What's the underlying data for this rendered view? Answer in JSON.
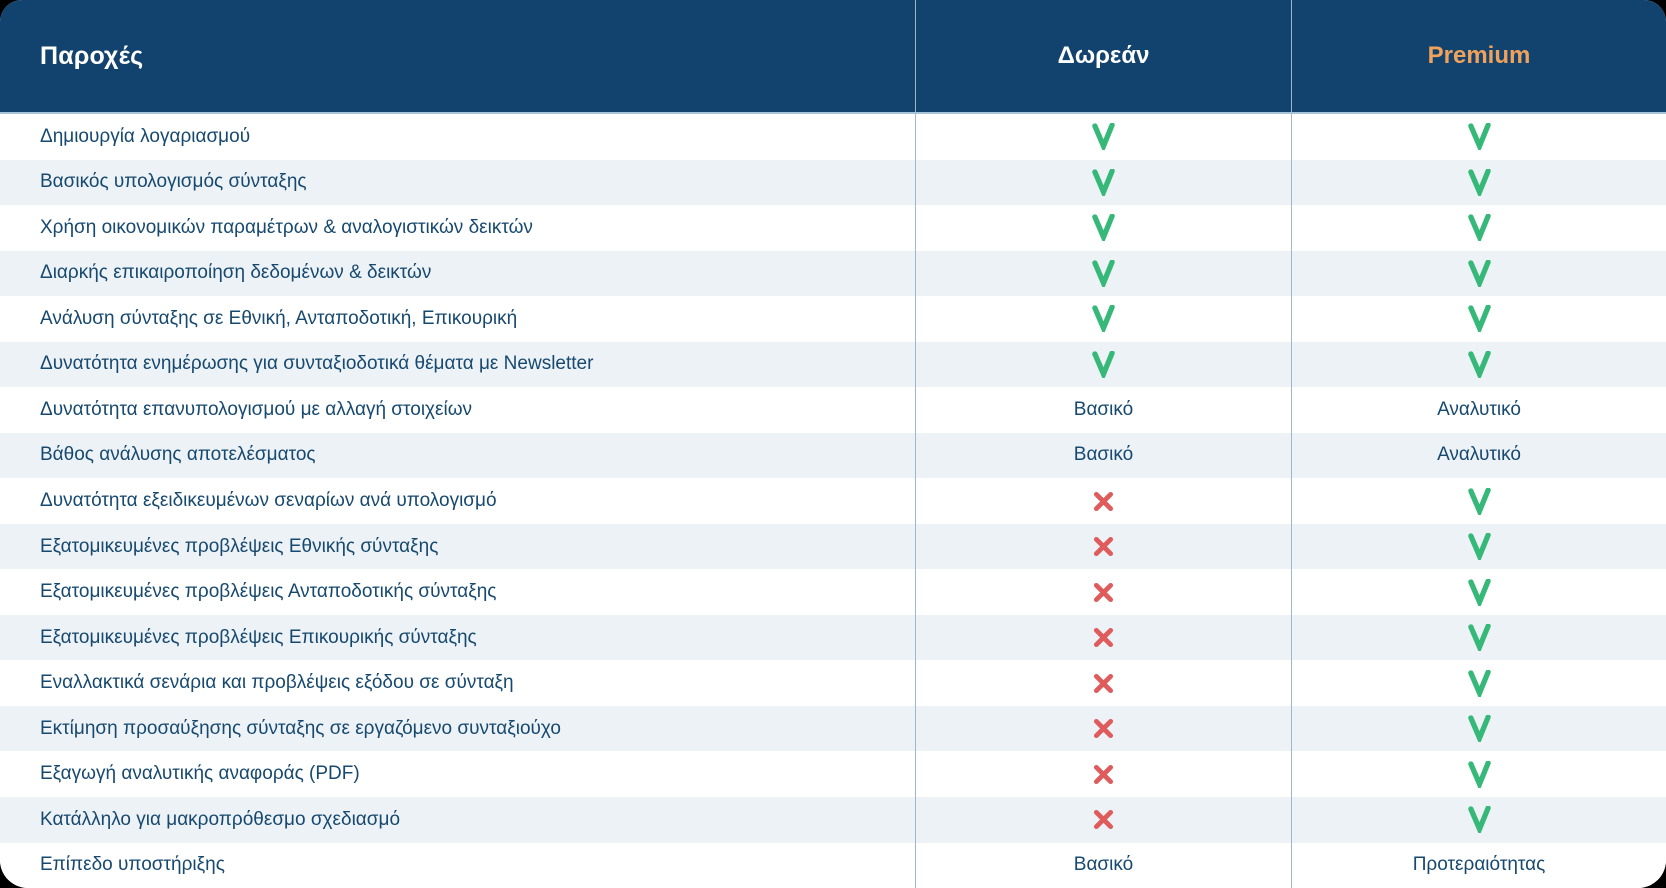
{
  "table": {
    "header": {
      "feature_label": "Παροχές",
      "free_label": "Δωρεάν",
      "premium_label": "Premium"
    },
    "rows": [
      {
        "feature": "Δημιουργία λογαριασμού",
        "free": "check",
        "premium": "check"
      },
      {
        "feature": "Βασικός υπολογισμός σύνταξης",
        "free": "check",
        "premium": "check"
      },
      {
        "feature": "Χρήση οικονομικών παραμέτρων & αναλογιστικών δεικτών",
        "free": "check",
        "premium": "check"
      },
      {
        "feature": "Διαρκής επικαιροποίηση δεδομένων & δεικτών",
        "free": "check",
        "premium": "check"
      },
      {
        "feature": "Ανάλυση σύνταξης σε Εθνική, Ανταποδοτική, Επικουρική",
        "free": "check",
        "premium": "check"
      },
      {
        "feature": "Δυνατότητα ενημέρωσης για συνταξιοδοτικά θέματα με Newsletter",
        "free": "check",
        "premium": "check"
      },
      {
        "feature": "Δυνατότητα επανυπολογισμού με αλλαγή στοιχείων",
        "free": "Βασικό",
        "premium": "Αναλυτικό"
      },
      {
        "feature": "Βάθος ανάλυσης αποτελέσματος",
        "free": "Βασικό",
        "premium": "Αναλυτικό"
      },
      {
        "feature": "Δυνατότητα εξειδικευμένων σεναρίων ανά υπολογισμό",
        "free": "cross",
        "premium": "check"
      },
      {
        "feature": "Εξατομικευμένες προβλέψεις Εθνικής σύνταξης",
        "free": "cross",
        "premium": "check"
      },
      {
        "feature": "Εξατομικευμένες προβλέψεις Ανταποδοτικής σύνταξης",
        "free": "cross",
        "premium": "check"
      },
      {
        "feature": "Εξατομικευμένες προβλέψεις Επικουρικής σύνταξης",
        "free": "cross",
        "premium": "check"
      },
      {
        "feature": "Εναλλακτικά σενάρια και προβλέψεις εξόδου σε σύνταξη",
        "free": "cross",
        "premium": "check"
      },
      {
        "feature": "Εκτίμηση προσαύξησης σύνταξης σε εργαζόμενο συνταξιούχο",
        "free": "cross",
        "premium": "check"
      },
      {
        "feature": "Εξαγωγή αναλυτικής αναφοράς (PDF)",
        "free": "cross",
        "premium": "check"
      },
      {
        "feature": "Κατάλληλο για μακροπρόθεσμο σχεδιασμό",
        "free": "cross",
        "premium": "check"
      },
      {
        "feature": "Επίπεδο υποστήριξης",
        "free": "Βασικό",
        "premium": "Προτεραιότητας"
      }
    ]
  },
  "icons": {
    "check": "check-icon",
    "cross": "cross-icon"
  },
  "colors": {
    "header_background": "#12436f",
    "premium_accent": "#f0a25c",
    "check_green": "#35b878",
    "cross_red": "#e05c5c",
    "row_alt_background": "#edf2f6",
    "text_navy": "#17496f",
    "divider": "#9db7cb"
  }
}
